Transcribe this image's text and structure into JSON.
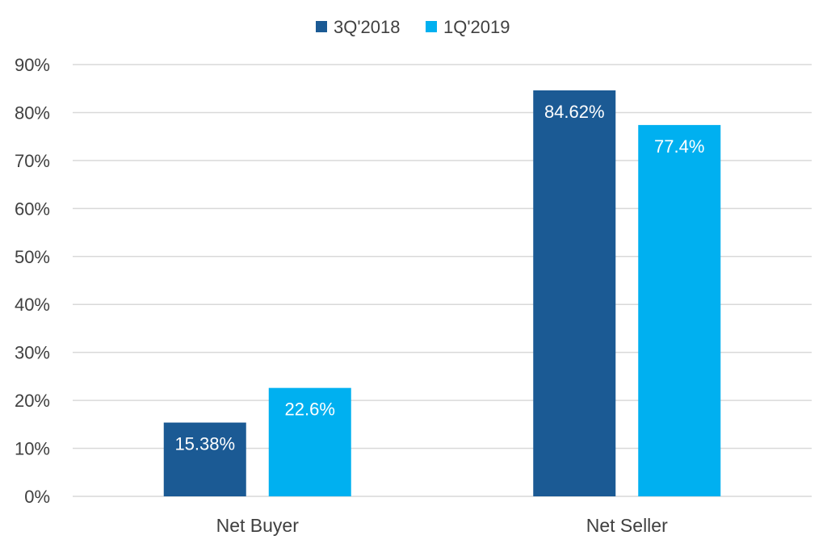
{
  "chart_data": {
    "type": "bar",
    "title": "",
    "xlabel": "",
    "ylabel": "",
    "categories": [
      "Net Buyer",
      "Net Seller"
    ],
    "series": [
      {
        "name": "3Q'2018",
        "values": [
          15.38,
          84.62
        ],
        "labels": [
          "15.38%",
          "84.62%"
        ],
        "color": "#1B5A94"
      },
      {
        "name": "1Q'2019",
        "values": [
          22.6,
          77.4
        ],
        "labels": [
          "22.6%",
          "77.4%"
        ],
        "color": "#00B0F0"
      }
    ],
    "ylim": [
      0,
      90
    ],
    "yticks": [
      0,
      10,
      20,
      30,
      40,
      50,
      60,
      70,
      80,
      90
    ],
    "ytick_labels": [
      "0%",
      "10%",
      "20%",
      "30%",
      "40%",
      "50%",
      "60%",
      "70%",
      "80%",
      "90%"
    ],
    "grid": true,
    "legend_position": "top-center",
    "colors": {
      "gridline": "#D9D9D9",
      "text": "#404040",
      "data_label": "#FFFFFF"
    }
  }
}
